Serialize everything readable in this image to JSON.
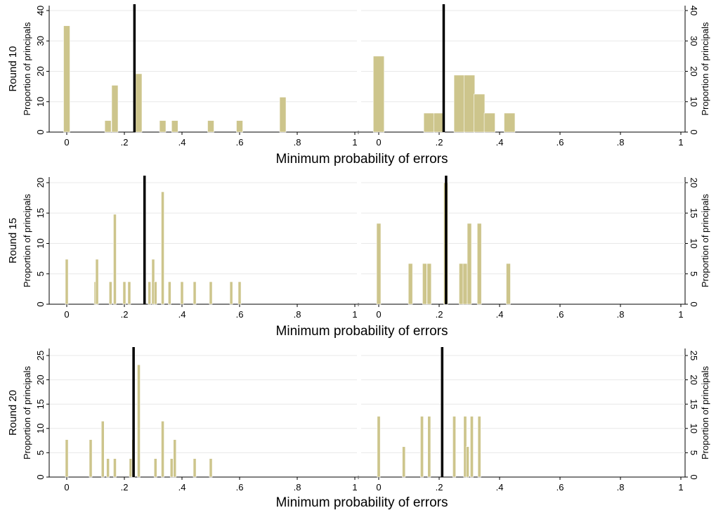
{
  "colors": {
    "bar": "#cdc58c",
    "bar_edge": "#bdb57c",
    "marker": "#000000",
    "grid": "#e8e8e8",
    "axis": "#000000"
  },
  "xlabel": "Minimum probability of errors",
  "ylabel": "Proportion of principals",
  "xticks": [
    "0",
    ".2",
    ".4",
    ".6",
    ".8",
    "1"
  ],
  "xtick_values": [
    0,
    0.2,
    0.4,
    0.6,
    0.8,
    1
  ],
  "rows": [
    {
      "label": "Round 10"
    },
    {
      "label": "Round 15"
    },
    {
      "label": "Round 20"
    }
  ],
  "chart_data": [
    {
      "type": "bar",
      "row": "Round 10",
      "panel": "left",
      "xlim": [
        0,
        1
      ],
      "ylim": [
        0,
        40
      ],
      "yticks": [
        "0",
        "10",
        "20",
        "30",
        "40"
      ],
      "ytick_values": [
        0,
        10,
        20,
        30,
        40
      ],
      "bin_width": 0.022,
      "marker_x": 0.235,
      "bars": [
        {
          "x": 0.0,
          "y": 35
        },
        {
          "x": 0.143,
          "y": 3.8
        },
        {
          "x": 0.167,
          "y": 15.4
        },
        {
          "x": 0.25,
          "y": 19.2
        },
        {
          "x": 0.333,
          "y": 3.8
        },
        {
          "x": 0.375,
          "y": 3.8
        },
        {
          "x": 0.5,
          "y": 3.8
        },
        {
          "x": 0.6,
          "y": 3.8
        },
        {
          "x": 0.75,
          "y": 11.5
        }
      ]
    },
    {
      "type": "bar",
      "row": "Round 10",
      "panel": "right",
      "xlim": [
        0,
        1
      ],
      "ylim": [
        0,
        40
      ],
      "yticks": [
        "0",
        "10",
        "20",
        "30",
        "40"
      ],
      "ytick_values": [
        0,
        10,
        20,
        30,
        40
      ],
      "bin_width": 0.036,
      "marker_x": 0.215,
      "bars": [
        {
          "x": 0.0,
          "y": 25
        },
        {
          "x": 0.167,
          "y": 6.25
        },
        {
          "x": 0.2,
          "y": 6.25
        },
        {
          "x": 0.267,
          "y": 18.75
        },
        {
          "x": 0.3,
          "y": 18.75
        },
        {
          "x": 0.333,
          "y": 12.5
        },
        {
          "x": 0.367,
          "y": 6.25
        },
        {
          "x": 0.433,
          "y": 6.25
        }
      ]
    },
    {
      "type": "bar",
      "row": "Round 15",
      "panel": "left",
      "xlim": [
        0,
        1
      ],
      "ylim": [
        0,
        20
      ],
      "yticks": [
        "0",
        "5",
        "10",
        "15",
        "20"
      ],
      "ytick_values": [
        0,
        5,
        10,
        15,
        20
      ],
      "bin_width": 0.01,
      "marker_x": 0.27,
      "bars": [
        {
          "x": 0.0,
          "y": 7.4
        },
        {
          "x": 0.1,
          "y": 3.7
        },
        {
          "x": 0.105,
          "y": 7.4
        },
        {
          "x": 0.152,
          "y": 3.7
        },
        {
          "x": 0.167,
          "y": 14.8
        },
        {
          "x": 0.2,
          "y": 3.7
        },
        {
          "x": 0.217,
          "y": 3.7
        },
        {
          "x": 0.287,
          "y": 3.7
        },
        {
          "x": 0.3,
          "y": 7.4
        },
        {
          "x": 0.308,
          "y": 3.7
        },
        {
          "x": 0.333,
          "y": 18.5
        },
        {
          "x": 0.357,
          "y": 3.7
        },
        {
          "x": 0.4,
          "y": 3.7
        },
        {
          "x": 0.444,
          "y": 3.7
        },
        {
          "x": 0.5,
          "y": 3.7
        },
        {
          "x": 0.571,
          "y": 3.7
        },
        {
          "x": 0.6,
          "y": 3.7
        }
      ]
    },
    {
      "type": "bar",
      "row": "Round 15",
      "panel": "right",
      "xlim": [
        0,
        1
      ],
      "ylim": [
        0,
        20
      ],
      "yticks": [
        "0",
        "5",
        "10",
        "15",
        "20"
      ],
      "ytick_values": [
        0,
        5,
        10,
        15,
        20
      ],
      "bin_width": 0.014,
      "marker_x": 0.223,
      "bars": [
        {
          "x": 0.0,
          "y": 13.3
        },
        {
          "x": 0.105,
          "y": 6.7
        },
        {
          "x": 0.152,
          "y": 6.7
        },
        {
          "x": 0.167,
          "y": 6.7
        },
        {
          "x": 0.222,
          "y": 20
        },
        {
          "x": 0.273,
          "y": 6.7
        },
        {
          "x": 0.286,
          "y": 6.7
        },
        {
          "x": 0.3,
          "y": 13.3
        },
        {
          "x": 0.333,
          "y": 13.3
        },
        {
          "x": 0.429,
          "y": 6.7
        }
      ]
    },
    {
      "type": "bar",
      "row": "Round 20",
      "panel": "left",
      "xlim": [
        0,
        1
      ],
      "ylim": [
        0,
        25
      ],
      "yticks": [
        "0",
        "5",
        "10",
        "15",
        "20",
        "25"
      ],
      "ytick_values": [
        0,
        5,
        10,
        15,
        20,
        25
      ],
      "bin_width": 0.01,
      "marker_x": 0.232,
      "bars": [
        {
          "x": 0.0,
          "y": 7.7
        },
        {
          "x": 0.083,
          "y": 7.7
        },
        {
          "x": 0.125,
          "y": 11.5
        },
        {
          "x": 0.143,
          "y": 3.8
        },
        {
          "x": 0.167,
          "y": 3.8
        },
        {
          "x": 0.222,
          "y": 3.8
        },
        {
          "x": 0.231,
          "y": 7.7
        },
        {
          "x": 0.25,
          "y": 23.1
        },
        {
          "x": 0.308,
          "y": 3.8
        },
        {
          "x": 0.333,
          "y": 11.5
        },
        {
          "x": 0.364,
          "y": 3.8
        },
        {
          "x": 0.375,
          "y": 7.7
        },
        {
          "x": 0.444,
          "y": 3.8
        },
        {
          "x": 0.5,
          "y": 3.8
        }
      ]
    },
    {
      "type": "bar",
      "row": "Round 20",
      "panel": "right",
      "xlim": [
        0,
        1
      ],
      "ylim": [
        0,
        25
      ],
      "yticks": [
        "0",
        "5",
        "10",
        "15",
        "20",
        "25"
      ],
      "ytick_values": [
        0,
        5,
        10,
        15,
        20,
        25
      ],
      "bin_width": 0.01,
      "marker_x": 0.21,
      "bars": [
        {
          "x": 0.0,
          "y": 12.5
        },
        {
          "x": 0.083,
          "y": 6.25
        },
        {
          "x": 0.143,
          "y": 12.5
        },
        {
          "x": 0.167,
          "y": 12.5
        },
        {
          "x": 0.25,
          "y": 12.5
        },
        {
          "x": 0.286,
          "y": 12.5
        },
        {
          "x": 0.294,
          "y": 6.25
        },
        {
          "x": 0.308,
          "y": 12.5
        },
        {
          "x": 0.333,
          "y": 12.5
        }
      ]
    }
  ]
}
